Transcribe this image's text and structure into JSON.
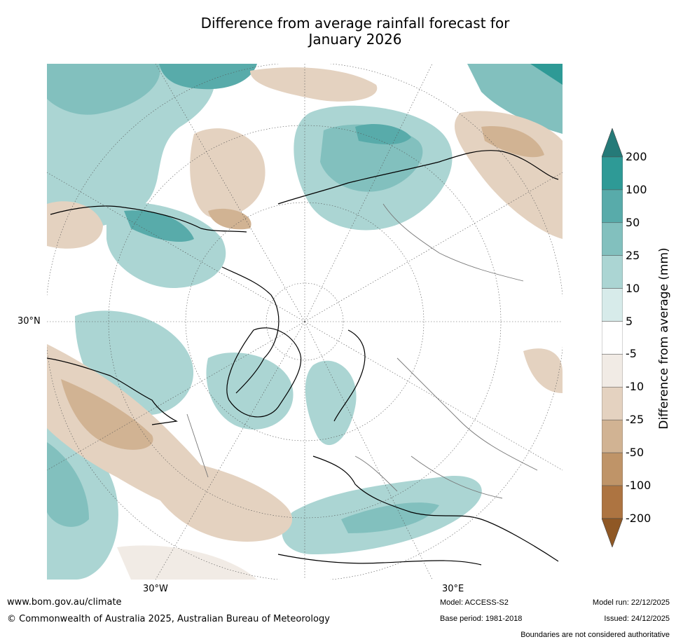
{
  "title_line1": "Difference from average rainfall forecast for",
  "title_line2": "January 2026",
  "axis_labels": {
    "lat": "30°N",
    "lon_w": "30°W",
    "lon_e": "30°E"
  },
  "colorbar": {
    "label": "Difference from average (mm)",
    "ticks": [
      "200",
      "100",
      "50",
      "25",
      "10",
      "5",
      "-5",
      "-10",
      "-25",
      "-50",
      "-100",
      "-200"
    ],
    "colors": [
      "#257a78",
      "#2e9a96",
      "#58abaa",
      "#82c0be",
      "#abd5d3",
      "#d7ebea",
      "#ffffff",
      "#f1ebe5",
      "#e4d2c0",
      "#d1b393",
      "#bf9468",
      "#ad7441",
      "#8f5825"
    ]
  },
  "footer": {
    "website": "www.bom.gov.au/climate",
    "copyright": "© Commonwealth of Australia 2025, Australian Bureau of Meteorology",
    "model": "Model: ACCESS-S2",
    "base_period": "Base period: 1981-2018",
    "model_run": "Model run: 22/12/2025",
    "issued": "Issued: 24/12/2025",
    "disclaimer": "Boundaries are not considered authoritative"
  }
}
